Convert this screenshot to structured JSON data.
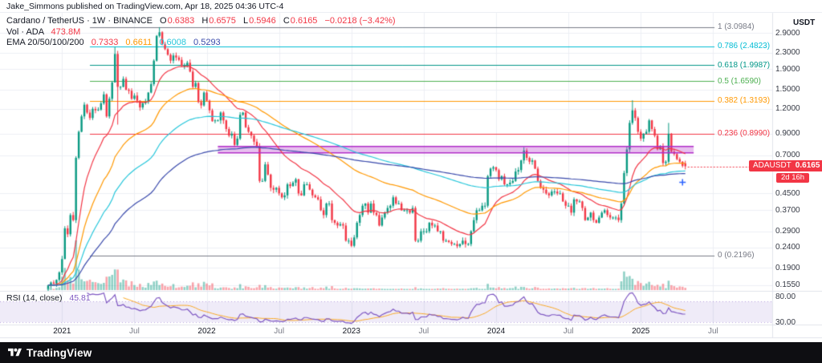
{
  "attribution": {
    "text": "Jake_Simmons published on TradingView.com, Apr 18, 2025 04:36 UTC-4"
  },
  "symbol_legend": {
    "title": "Cardano / TetherUS · 1W · BINANCE",
    "ohlc": {
      "o_label": "O",
      "o": "0.6383",
      "h_label": "H",
      "h": "0.6575",
      "l_label": "L",
      "l": "0.5946",
      "c_label": "C",
      "c": "0.6165",
      "change": "−0.0218 (−3.42%)"
    },
    "volume_label": "Vol · ADA",
    "volume_value": "473.8M",
    "ema_label": "EMA 20/50/100/200",
    "ema_values": [
      "0.7333",
      "0.6611",
      "0.6008",
      "0.5293"
    ]
  },
  "rsi_legend": {
    "label": "RSI (14, close)",
    "value": "45.81"
  },
  "price_axis": {
    "title": "USDT",
    "symbol_tag": "ADAUSDT",
    "last_price": "0.6165",
    "countdown": "2d 16h",
    "ticks": [
      {
        "label": "2.9000",
        "value": 2.9
      },
      {
        "label": "2.3000",
        "value": 2.3
      },
      {
        "label": "1.9000",
        "value": 1.9
      },
      {
        "label": "1.5000",
        "value": 1.5
      },
      {
        "label": "1.2000",
        "value": 1.2
      },
      {
        "label": "0.9000",
        "value": 0.9
      },
      {
        "label": "0.7000",
        "value": 0.7
      },
      {
        "label": "0.4500",
        "value": 0.45
      },
      {
        "label": "0.3700",
        "value": 0.37
      },
      {
        "label": "0.2900",
        "value": 0.29
      },
      {
        "label": "0.2400",
        "value": 0.24
      },
      {
        "label": "0.1900",
        "value": 0.19
      },
      {
        "label": "0.1550",
        "value": 0.155
      }
    ]
  },
  "time_axis": {
    "ticks": [
      {
        "label": "2021",
        "week": 5,
        "major": true
      },
      {
        "label": "Jul",
        "week": 31,
        "major": false
      },
      {
        "label": "2022",
        "week": 57,
        "major": true
      },
      {
        "label": "Jul",
        "week": 83,
        "major": false
      },
      {
        "label": "2023",
        "week": 109,
        "major": true
      },
      {
        "label": "Jul",
        "week": 135,
        "major": false
      },
      {
        "label": "2024",
        "week": 161,
        "major": true
      },
      {
        "label": "Jul",
        "week": 187,
        "major": false
      },
      {
        "label": "2025",
        "week": 213,
        "major": true
      },
      {
        "label": "Jul",
        "week": 239,
        "major": false
      }
    ]
  },
  "rsi_axis": {
    "ticks": [
      {
        "label": "80.00",
        "value": 80
      },
      {
        "label": "30.00",
        "value": 30
      }
    ]
  },
  "footer": {
    "brand": "TradingView"
  },
  "chart_data": {
    "type": "candlestick",
    "title": "Cardano / TetherUS",
    "symbol": "ADAUSDT",
    "exchange": "BINANCE",
    "interval": "1W",
    "scale": "logarithmic",
    "ylim": [
      0.135,
      3.6
    ],
    "grid": true,
    "closes": [
      0.155,
      0.16,
      0.158,
      0.165,
      0.18,
      0.21,
      0.3,
      0.28,
      0.35,
      0.33,
      0.68,
      0.92,
      1.1,
      1.26,
      1.15,
      1.08,
      1.2,
      1.18,
      1.19,
      1.28,
      1.42,
      1.1,
      1.35,
      1.63,
      2.27,
      1.55,
      1.55,
      1.7,
      1.5,
      1.48,
      1.35,
      1.4,
      1.32,
      1.22,
      1.28,
      1.3,
      1.45,
      1.6,
      2.1,
      2.8,
      2.92,
      2.55,
      2.4,
      2.25,
      2.1,
      2.23,
      2.18,
      2.12,
      1.98,
      1.98,
      2.05,
      1.85,
      1.55,
      1.62,
      1.3,
      1.25,
      1.45,
      1.32,
      1.18,
      1.04,
      1.05,
      1.05,
      1.15,
      1.05,
      0.95,
      0.88,
      0.9,
      0.79,
      0.85,
      1.12,
      1.15,
      0.97,
      0.92,
      0.88,
      0.82,
      0.78,
      0.52,
      0.52,
      0.63,
      0.56,
      0.48,
      0.47,
      0.48,
      0.45,
      0.43,
      0.44,
      0.5,
      0.49,
      0.51,
      0.53,
      0.45,
      0.44,
      0.5,
      0.5,
      0.47,
      0.44,
      0.43,
      0.42,
      0.37,
      0.35,
      0.4,
      0.4,
      0.33,
      0.32,
      0.31,
      0.315,
      0.31,
      0.26,
      0.26,
      0.245,
      0.27,
      0.32,
      0.35,
      0.39,
      0.4,
      0.36,
      0.4,
      0.36,
      0.35,
      0.31,
      0.34,
      0.36,
      0.38,
      0.39,
      0.43,
      0.4,
      0.4,
      0.37,
      0.37,
      0.37,
      0.36,
      0.38,
      0.26,
      0.26,
      0.29,
      0.29,
      0.29,
      0.32,
      0.31,
      0.31,
      0.29,
      0.29,
      0.26,
      0.26,
      0.256,
      0.25,
      0.25,
      0.244,
      0.25,
      0.26,
      0.25,
      0.25,
      0.29,
      0.33,
      0.37,
      0.37,
      0.39,
      0.39,
      0.55,
      0.6,
      0.61,
      0.59,
      0.53,
      0.55,
      0.5,
      0.5,
      0.51,
      0.52,
      0.58,
      0.59,
      0.66,
      0.74,
      0.68,
      0.65,
      0.66,
      0.6,
      0.52,
      0.48,
      0.47,
      0.45,
      0.44,
      0.46,
      0.46,
      0.45,
      0.45,
      0.41,
      0.39,
      0.39,
      0.36,
      0.42,
      0.41,
      0.41,
      0.38,
      0.33,
      0.34,
      0.36,
      0.33,
      0.32,
      0.34,
      0.36,
      0.37,
      0.35,
      0.34,
      0.34,
      0.34,
      0.33,
      0.4,
      0.57,
      0.75,
      1.02,
      1.18,
      1.08,
      0.92,
      0.85,
      0.9,
      0.92,
      1.05,
      0.95,
      0.88,
      0.75,
      0.78,
      0.64,
      0.65,
      0.9,
      0.73,
      0.71,
      0.67,
      0.65,
      0.62,
      0.6165
    ],
    "candle_overrides": [
      {
        "i": 6,
        "l": 0.2196
      },
      {
        "i": 24,
        "h": 2.46,
        "l": 1.7
      },
      {
        "i": 25,
        "l": 1.0
      },
      {
        "i": 40,
        "h": 3.0984
      },
      {
        "i": 210,
        "h": 1.3263
      },
      {
        "i": 223,
        "h": 1.02
      },
      {
        "i": 229,
        "o": 0.6383,
        "h": 0.6575,
        "l": 0.5946,
        "c": 0.6165
      }
    ],
    "last_candle": {
      "open": 0.6383,
      "high": 0.6575,
      "low": 0.5946,
      "close": 0.6165,
      "change": -0.0218,
      "change_pct": -3.42,
      "countdown": "2d 16h"
    },
    "indicators": {
      "emas": [
        {
          "period": 20,
          "color": "#f23645",
          "last": 0.7333
        },
        {
          "period": 50,
          "color": "#ff9800",
          "last": 0.6611
        },
        {
          "period": 100,
          "color": "#26c6da",
          "last": 0.6008
        },
        {
          "period": 200,
          "color": "#3949ab",
          "last": 0.5293
        }
      ],
      "volume": {
        "last_label": "473.8M",
        "color_up": "rgba(8,153,129,0.45)",
        "color_down": "rgba(242,54,69,0.45)"
      },
      "rsi": {
        "period": 14,
        "source": "close",
        "last": 45.81,
        "upper": 70,
        "lower": 30,
        "line_color": "#7e57c2",
        "ma_color": "#f9a825",
        "band_color": "rgba(126,87,194,0.12)"
      }
    },
    "fib_retracement": {
      "low": 0.2196,
      "high": 3.0984,
      "start_week": 15,
      "end_week": 239.5,
      "levels": [
        {
          "label": "1 (3.0984)",
          "price": 3.0984,
          "color": "#787b86"
        },
        {
          "label": "0.786 (2.4823)",
          "price": 2.4823,
          "color": "#00bcd4"
        },
        {
          "label": "0.618 (1.9987)",
          "price": 1.9987,
          "color": "#009688"
        },
        {
          "label": "0.5 (1.6590)",
          "price": 1.659,
          "color": "#4caf50"
        },
        {
          "label": "0.382 (1.3193)",
          "price": 1.3193,
          "color": "#ff9800"
        },
        {
          "label": "0.236 (0.8990)",
          "price": 0.899,
          "color": "#f23645"
        },
        {
          "label": "0 (0.2196)",
          "price": 0.2196,
          "color": "#787b86"
        }
      ]
    },
    "supply_zone": {
      "top": 0.776,
      "bottom": 0.72,
      "start_week": 61,
      "end_week": 232,
      "color": "#b02cc8",
      "fill": "rgba(176,44,200,0.3)"
    },
    "marker": {
      "week": 228,
      "price": 0.512,
      "color": "#2962ff"
    },
    "colors": {
      "up": "#089981",
      "down": "#f23645",
      "grid": "#eceff4",
      "border": "#e0e3eb",
      "last_price_line": "#f23645"
    }
  }
}
